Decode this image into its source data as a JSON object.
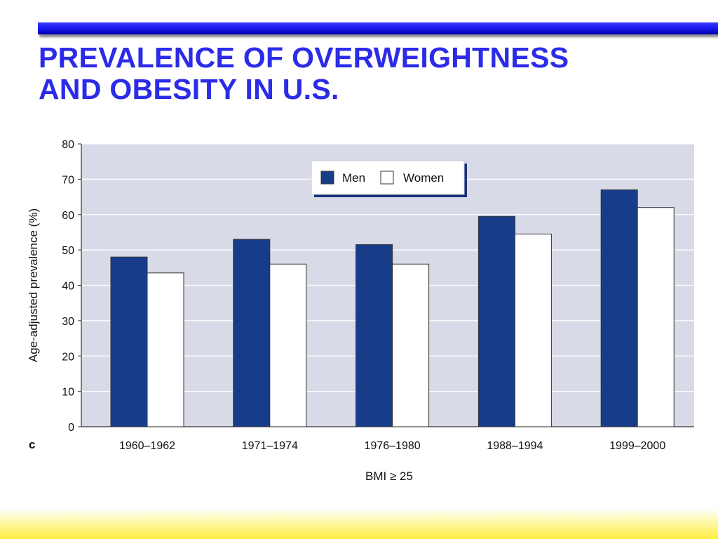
{
  "slide": {
    "title_line1": "PREVALENCE OF OVERWEIGHTNESS",
    "title_line2": "AND OBESITY IN U.S.",
    "panel_letter": "c"
  },
  "colors": {
    "accent_bar": "#1a1af0",
    "title": "#2b2be8",
    "plot_background": "#d9dae8",
    "men": "#173d8a",
    "women": "#ffffff",
    "bottom_band": "#fff36a"
  },
  "chart_data": {
    "type": "bar",
    "categories": [
      "1960–1962",
      "1971–1974",
      "1976–1980",
      "1988–1994",
      "1999–2000"
    ],
    "series": [
      {
        "name": "Men",
        "values": [
          48,
          53,
          51.5,
          59.5,
          67
        ]
      },
      {
        "name": "Women",
        "values": [
          43.5,
          46,
          46,
          54.5,
          62
        ]
      }
    ],
    "title": "",
    "xlabel": "BMI ≥ 25",
    "ylabel": "Age-adjusted prevalence (%)",
    "ylim": [
      0,
      80
    ],
    "yticks": [
      "0",
      "10",
      "20",
      "30",
      "40",
      "50",
      "60",
      "70",
      "80"
    ],
    "grid": true,
    "legend_position": "top-center"
  }
}
